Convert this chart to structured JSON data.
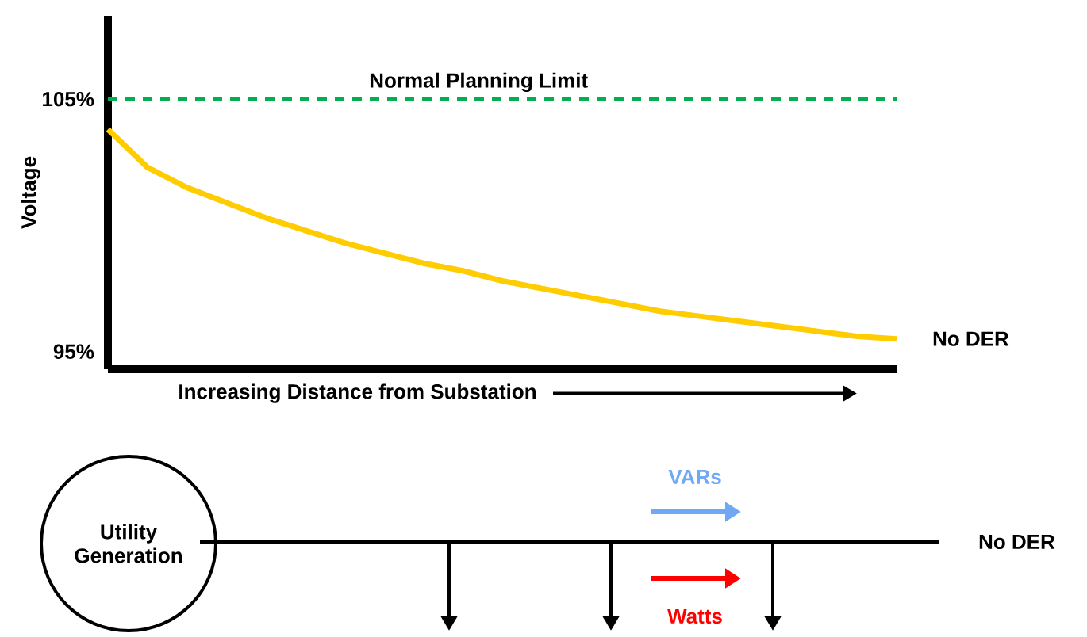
{
  "chart_data": {
    "type": "line",
    "ylabel": "Voltage",
    "xlabel": "Increasing Distance from Substation",
    "categories": [
      null,
      null,
      null,
      null,
      null,
      null,
      null,
      null,
      null,
      null,
      null,
      null,
      null,
      null,
      null,
      null,
      null,
      null,
      null,
      null,
      null
    ],
    "series": [
      {
        "name": "No DER",
        "color": "#ffcc00",
        "values": [
          103.8,
          102.3,
          101.5,
          100.9,
          100.3,
          99.8,
          99.3,
          98.9,
          98.5,
          98.2,
          97.8,
          97.5,
          97.2,
          96.9,
          96.6,
          96.4,
          96.2,
          96.0,
          95.8,
          95.6,
          95.5
        ]
      }
    ],
    "ylim": [
      94.3,
      108.3
    ],
    "yticks": [
      {
        "value": 95,
        "label": "95%"
      },
      {
        "value": 105,
        "label": "105%"
      }
    ],
    "ref_lines": [
      {
        "axis": "y",
        "value": 105,
        "label": "Normal Planning Limit",
        "color": "#00b050",
        "line_style": "dashed"
      }
    ],
    "annotations": [
      "Utility Generation",
      "VARs",
      "Watts",
      "No DER"
    ]
  }
}
